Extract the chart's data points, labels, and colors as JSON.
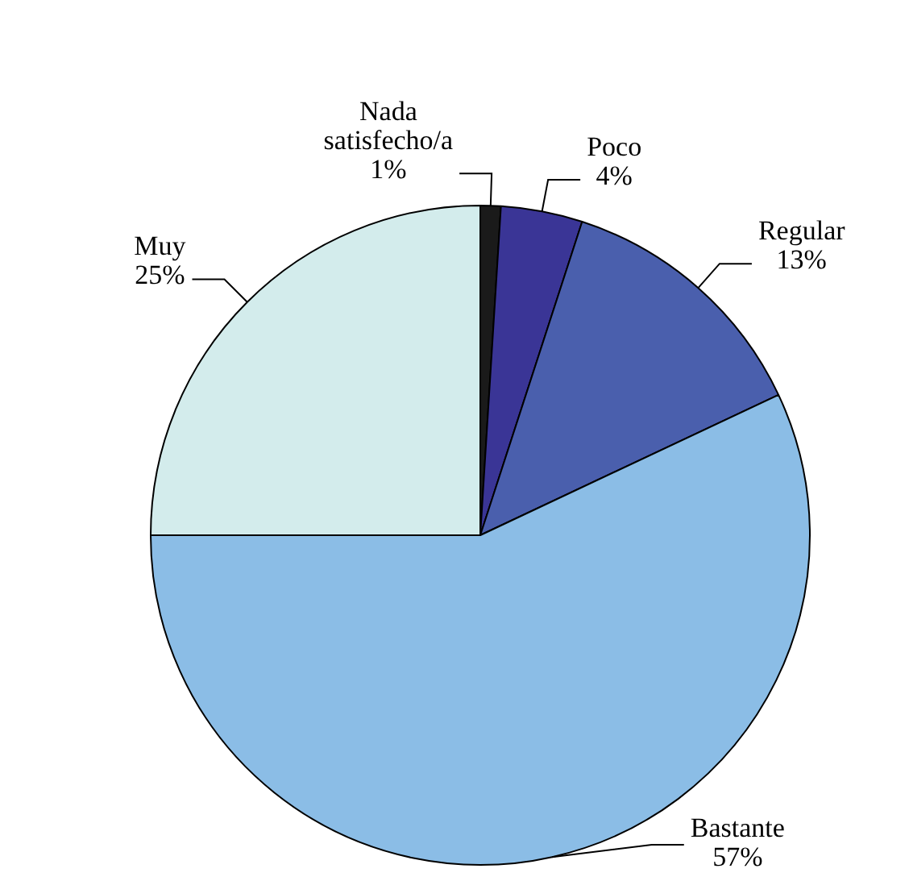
{
  "chart_data": {
    "type": "pie",
    "categories": [
      "Nada satisfecho/a",
      "Poco",
      "Regular",
      "Bastante",
      "Muy"
    ],
    "values": [
      1,
      4,
      13,
      57,
      25
    ],
    "colors": [
      "#1a1a1a",
      "#3a3596",
      "#4a5fad",
      "#8bbde6",
      "#d3ecec"
    ],
    "value_labels": [
      "1%",
      "4%",
      "13%",
      "57%",
      "25%"
    ],
    "legend": false
  }
}
